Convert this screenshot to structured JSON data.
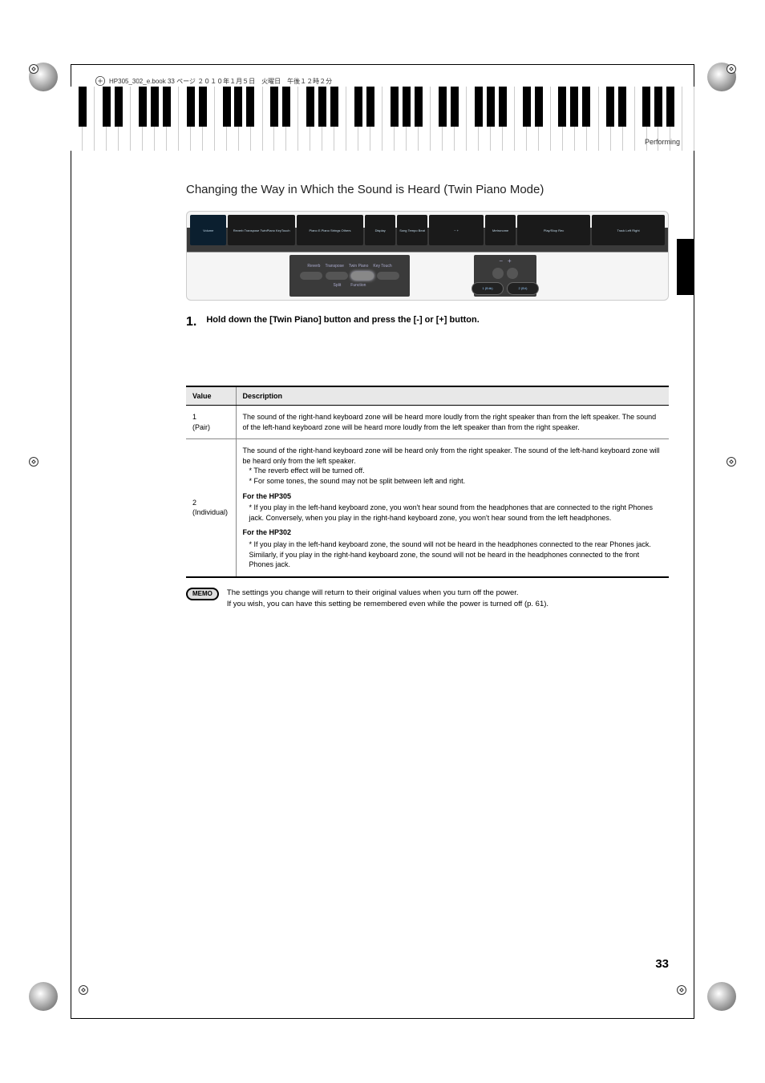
{
  "doc_header": "HP305_302_e.book 33 ページ ２０１０年１月５日　火曜日　午後１２時２分",
  "section_label": "Performing",
  "section_title": "Changing the Way in Which the Sound is Heard (Twin Piano Mode)",
  "panel": {
    "top_labels": [
      "Volume",
      "Reverb  Transpose  TwinPiano  KeyTouch",
      "Piano  E.Piano  Strings  Others",
      "Display",
      "Song Tempo Beat",
      "−  +",
      "Metronome",
      "Play/Stop  Rec",
      "Track  Left  Right"
    ],
    "zoom_left_top": [
      "Reverb",
      "Transpose",
      "Twin Piano",
      "Key Touch"
    ],
    "zoom_left_bottom": [
      "Split",
      "Function"
    ],
    "zoom_right_minus": "−",
    "zoom_right_plus": "+",
    "zoom_right_vals": [
      "1 (B:tb)",
      "2 (B:t)"
    ]
  },
  "step": {
    "num": "1.",
    "text": "Hold down the [Twin Piano] button and press the [-] or [+] button."
  },
  "table": {
    "headers": [
      "Value",
      "Description"
    ],
    "rows": [
      {
        "value_line1": "1",
        "value_line2": "(Pair)",
        "desc": "The sound of the right-hand keyboard zone will be heard more loudly from the right speaker than from the left speaker. The sound of the left-hand keyboard zone will be heard more loudly from the left speaker than from the right speaker."
      },
      {
        "value_line1": "2",
        "value_line2": "(Individual)",
        "desc_main": "The sound of the right-hand keyboard zone will be heard only from the right speaker. The sound of the left-hand keyboard zone will be heard only from the left speaker.",
        "desc_b1": "*  The reverb effect will be turned off.",
        "desc_b2": "*  For some tones, the sound may not be split between left and right.",
        "sub1_title": "For the HP305",
        "sub1_text": "*  If you play in the left-hand keyboard zone, you won't hear sound from the headphones that are connected to the right Phones jack. Conversely, when you play in the right-hand keyboard zone, you won't hear sound from the left headphones.",
        "sub2_title": "For the HP302",
        "sub2_text": "*  If you play in the left-hand keyboard zone, the sound will not be heard in the headphones connected to the rear Phones jack. Similarly, if you play in the right-hand keyboard zone, the sound will not be heard in the headphones connected to the front Phones jack."
      }
    ]
  },
  "memo": {
    "badge": "MEMO",
    "line1": "The settings you change will return to their original values when you turn off the power.",
    "line2": "If you wish, you can have this setting be remembered even while the power is turned off (p. 61)."
  },
  "page_number": "33"
}
